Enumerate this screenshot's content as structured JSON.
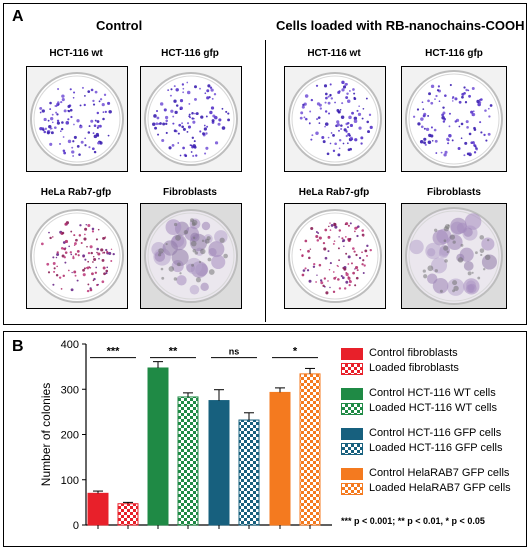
{
  "panel_a": {
    "label": "A",
    "left_heading": "Control",
    "right_heading": "Cells loaded with RB-nanochains-COOH",
    "dishes": [
      {
        "title": "HCT-116 wt",
        "type": "sparse-blue"
      },
      {
        "title": "HCT-116 gfp",
        "type": "sparse-blue"
      },
      {
        "title": "HeLa Rab7-gfp",
        "type": "red-purple"
      },
      {
        "title": "Fibroblasts",
        "type": "fibro"
      },
      {
        "title": "HCT-116 wt",
        "type": "sparse-blue"
      },
      {
        "title": "HCT-116 gfp",
        "type": "sparse-blue"
      },
      {
        "title": "HeLa Rab7-gfp",
        "type": "red-purple"
      },
      {
        "title": "Fibroblasts",
        "type": "fibro"
      }
    ]
  },
  "panel_b": {
    "label": "B",
    "footnote": "*** p < 0.001; ** p < 0.01, * p < 0.05"
  },
  "chart_data": {
    "type": "bar",
    "ylabel": "Number of colonies",
    "xlabel": "",
    "ylim": [
      0,
      400
    ],
    "yticks": [
      0,
      100,
      200,
      300,
      400
    ],
    "grid": false,
    "legend_position": "right",
    "series": [
      {
        "name": "Control fibroblasts",
        "value": 70,
        "error": 5,
        "color": "#e8202a",
        "pattern": "solid"
      },
      {
        "name": "Loaded fibroblasts",
        "value": 47,
        "error": 3,
        "color": "#e8202a",
        "pattern": "checker"
      },
      {
        "name": "Control HCT-116 WT cells",
        "value": 347,
        "error": 14,
        "color": "#1f8a45",
        "pattern": "solid"
      },
      {
        "name": "Loaded HCT-116 WT cells",
        "value": 283,
        "error": 9,
        "color": "#1f8a45",
        "pattern": "checker"
      },
      {
        "name": "Control HCT-116 GFP cells",
        "value": 275,
        "error": 24,
        "color": "#17607e",
        "pattern": "solid"
      },
      {
        "name": "Loaded HCT-116 GFP cells",
        "value": 232,
        "error": 16,
        "color": "#17607e",
        "pattern": "checker"
      },
      {
        "name": "Control HelaRAB7 GFP cells",
        "value": 293,
        "error": 10,
        "color": "#f47a1f",
        "pattern": "solid"
      },
      {
        "name": "Loaded HelaRAB7 GFP cells",
        "value": 334,
        "error": 12,
        "color": "#f47a1f",
        "pattern": "checker"
      }
    ],
    "significance": [
      {
        "pair": [
          0,
          1
        ],
        "label": "***"
      },
      {
        "pair": [
          2,
          3
        ],
        "label": "**"
      },
      {
        "pair": [
          4,
          5
        ],
        "label": "ns"
      },
      {
        "pair": [
          6,
          7
        ],
        "label": "*"
      }
    ]
  }
}
